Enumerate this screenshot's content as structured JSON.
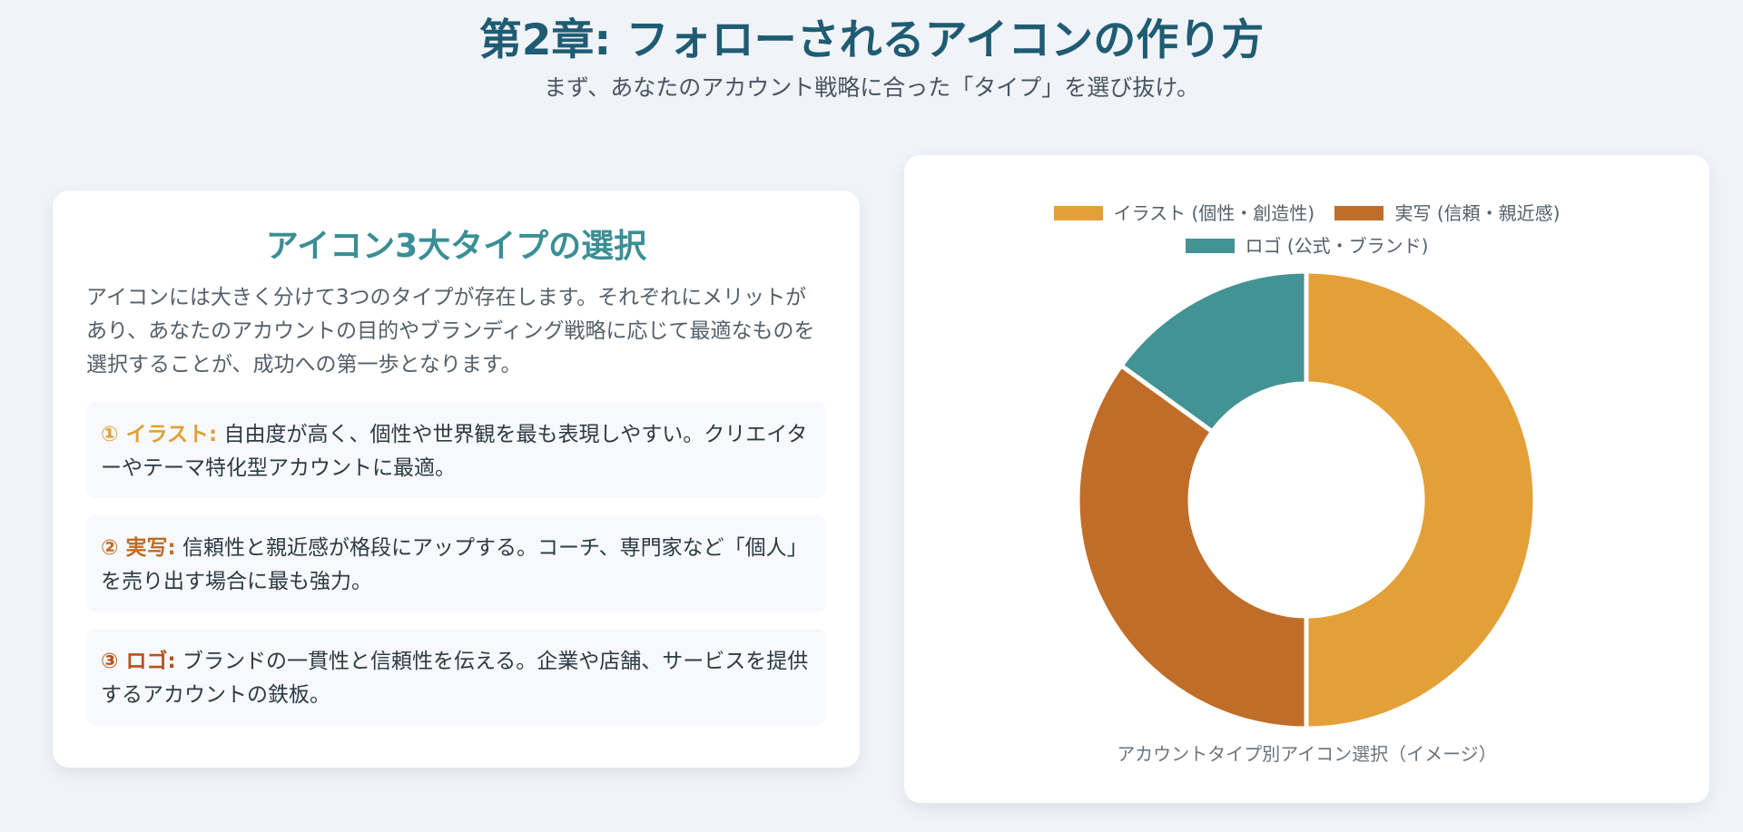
{
  "header": {
    "title": "第2章: フォローされるアイコンの作り方",
    "subtitle": "まず、あなたのアカウント戦略に合った「タイプ」を選び抜け。"
  },
  "left_card": {
    "title": "アイコン3大タイプの選択",
    "intro": "アイコンには大きく分けて3つのタイプが存在します。それぞれにメリットがあり、あなたのアカウントの目的やブランディング戦略に応じて最適なものを選択することが、成功への第一歩となります。",
    "types": [
      {
        "label": "① イラスト:",
        "text": " 自由度が高く、個性や世界観を最も表現しやすい。クリエイターやテーマ特化型アカウントに最適。",
        "color": "#e19f38"
      },
      {
        "label": "② 実写:",
        "text": " 信頼性と親近感が格段にアップする。コーチ、専門家など「個人」を売り出す場合に最も強力。",
        "color": "#bf6c27"
      },
      {
        "label": "③ ロゴ:",
        "text": " ブランドの一貫性と信頼性を伝える。企業や店舗、サービスを提供するアカウントの鉄板。",
        "color": "#b5521c"
      }
    ]
  },
  "chart_data": {
    "type": "pie",
    "variant": "doughnut",
    "title": "アカウントタイプ別アイコン選択（イメージ）",
    "legend_position": "top",
    "categories": [
      "イラスト (個性・創造性)",
      "実写 (信頼・親近感)",
      "ロゴ (公式・ブランド)"
    ],
    "values": [
      50,
      35,
      15
    ],
    "colors": [
      "#e3a039",
      "#bf6d28",
      "#439294"
    ]
  }
}
